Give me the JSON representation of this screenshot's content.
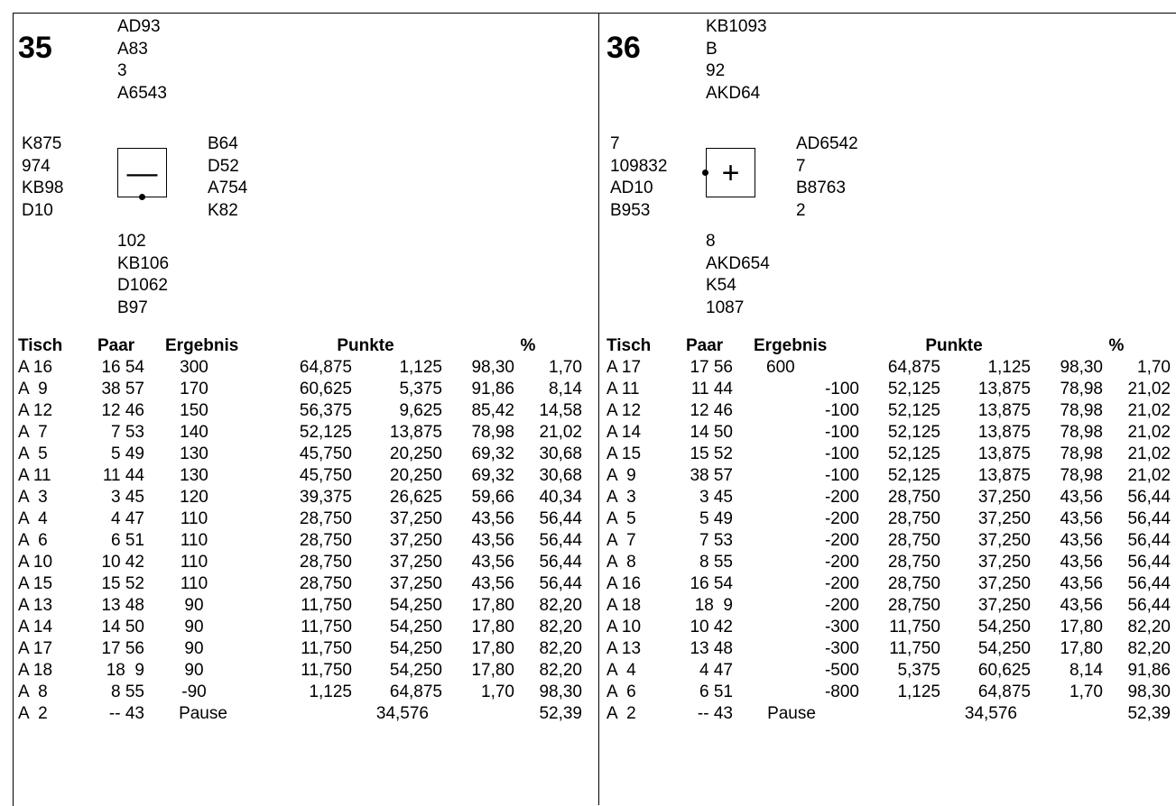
{
  "boards": [
    {
      "number": "35",
      "north": [
        "AD93",
        "A83",
        "3",
        "A6543"
      ],
      "west": [
        "K875",
        "974",
        "KB98",
        "D10"
      ],
      "east": [
        "B64",
        "D52",
        "A754",
        "K82"
      ],
      "south": [
        "102",
        "KB106",
        "D1062",
        "B97"
      ],
      "vulnerability_symbol": "—",
      "vulnerability_label": "none vulnerable",
      "dealer_marker": "south",
      "headers": [
        "Tisch",
        "Paar",
        "Ergebnis",
        "Punkte",
        "%"
      ],
      "rows": [
        {
          "tisch": "A 16",
          "paar": "16 54",
          "ergebnis": "300",
          "punkte_ns": "64,875",
          "punkte_ow": "1,125",
          "pct_ns": "98,30",
          "pct_ow": "1,70"
        },
        {
          "tisch": "A  9",
          "paar": "38 57",
          "ergebnis": "170",
          "punkte_ns": "60,625",
          "punkte_ow": "5,375",
          "pct_ns": "91,86",
          "pct_ow": "8,14"
        },
        {
          "tisch": "A 12",
          "paar": "12 46",
          "ergebnis": "150",
          "punkte_ns": "56,375",
          "punkte_ow": "9,625",
          "pct_ns": "85,42",
          "pct_ow": "14,58"
        },
        {
          "tisch": "A  7",
          "paar": "7 53",
          "ergebnis": "140",
          "punkte_ns": "52,125",
          "punkte_ow": "13,875",
          "pct_ns": "78,98",
          "pct_ow": "21,02"
        },
        {
          "tisch": "A  5",
          "paar": "5 49",
          "ergebnis": "130",
          "punkte_ns": "45,750",
          "punkte_ow": "20,250",
          "pct_ns": "69,32",
          "pct_ow": "30,68"
        },
        {
          "tisch": "A 11",
          "paar": "11 44",
          "ergebnis": "130",
          "punkte_ns": "45,750",
          "punkte_ow": "20,250",
          "pct_ns": "69,32",
          "pct_ow": "30,68"
        },
        {
          "tisch": "A  3",
          "paar": "3 45",
          "ergebnis": "120",
          "punkte_ns": "39,375",
          "punkte_ow": "26,625",
          "pct_ns": "59,66",
          "pct_ow": "40,34"
        },
        {
          "tisch": "A  4",
          "paar": "4 47",
          "ergebnis": "110",
          "punkte_ns": "28,750",
          "punkte_ow": "37,250",
          "pct_ns": "43,56",
          "pct_ow": "56,44"
        },
        {
          "tisch": "A  6",
          "paar": "6 51",
          "ergebnis": "110",
          "punkte_ns": "28,750",
          "punkte_ow": "37,250",
          "pct_ns": "43,56",
          "pct_ow": "56,44"
        },
        {
          "tisch": "A 10",
          "paar": "10 42",
          "ergebnis": "110",
          "punkte_ns": "28,750",
          "punkte_ow": "37,250",
          "pct_ns": "43,56",
          "pct_ow": "56,44"
        },
        {
          "tisch": "A 15",
          "paar": "15 52",
          "ergebnis": "110",
          "punkte_ns": "28,750",
          "punkte_ow": "37,250",
          "pct_ns": "43,56",
          "pct_ow": "56,44"
        },
        {
          "tisch": "A 13",
          "paar": "13 48",
          "ergebnis": "90",
          "punkte_ns": "11,750",
          "punkte_ow": "54,250",
          "pct_ns": "17,80",
          "pct_ow": "82,20"
        },
        {
          "tisch": "A 14",
          "paar": "14 50",
          "ergebnis": "90",
          "punkte_ns": "11,750",
          "punkte_ow": "54,250",
          "pct_ns": "17,80",
          "pct_ow": "82,20"
        },
        {
          "tisch": "A 17",
          "paar": "17 56",
          "ergebnis": "90",
          "punkte_ns": "11,750",
          "punkte_ow": "54,250",
          "pct_ns": "17,80",
          "pct_ow": "82,20"
        },
        {
          "tisch": "A 18",
          "paar": "18  9",
          "ergebnis": "90",
          "punkte_ns": "11,750",
          "punkte_ow": "54,250",
          "pct_ns": "17,80",
          "pct_ow": "82,20"
        },
        {
          "tisch": "A  8",
          "paar": "8 55",
          "ergebnis": "-90",
          "punkte_ns": "1,125",
          "punkte_ow": "64,875",
          "pct_ns": "1,70",
          "pct_ow": "98,30"
        },
        {
          "tisch": "A  2",
          "paar": "-- 43",
          "ergebnis": "Pause",
          "punkte_ns": "",
          "punkte_ow": "34,576",
          "pct_ns": "",
          "pct_ow": "52,39"
        }
      ]
    },
    {
      "number": "36",
      "north": [
        "KB1093",
        "B",
        "92",
        "AKD64"
      ],
      "west": [
        "7",
        "109832",
        "AD10",
        "B953"
      ],
      "east": [
        "AD6542",
        "7",
        "B8763",
        "2"
      ],
      "south": [
        "8",
        "AKD654",
        "K54",
        "1087"
      ],
      "vulnerability_symbol": "+",
      "vulnerability_label": "all vulnerable",
      "dealer_marker": "west",
      "headers": [
        "Tisch",
        "Paar",
        "Ergebnis",
        "Punkte",
        "%"
      ],
      "rows": [
        {
          "tisch": "A 17",
          "paar": "17 56",
          "ergebnis": "600",
          "punkte_ns": "64,875",
          "punkte_ow": "1,125",
          "pct_ns": "98,30",
          "pct_ow": "1,70"
        },
        {
          "tisch": "A 11",
          "paar": "11 44",
          "ergebnis": "-100",
          "punkte_ns": "52,125",
          "punkte_ow": "13,875",
          "pct_ns": "78,98",
          "pct_ow": "21,02"
        },
        {
          "tisch": "A 12",
          "paar": "12 46",
          "ergebnis": "-100",
          "punkte_ns": "52,125",
          "punkte_ow": "13,875",
          "pct_ns": "78,98",
          "pct_ow": "21,02"
        },
        {
          "tisch": "A 14",
          "paar": "14 50",
          "ergebnis": "-100",
          "punkte_ns": "52,125",
          "punkte_ow": "13,875",
          "pct_ns": "78,98",
          "pct_ow": "21,02"
        },
        {
          "tisch": "A 15",
          "paar": "15 52",
          "ergebnis": "-100",
          "punkte_ns": "52,125",
          "punkte_ow": "13,875",
          "pct_ns": "78,98",
          "pct_ow": "21,02"
        },
        {
          "tisch": "A  9",
          "paar": "38 57",
          "ergebnis": "-100",
          "punkte_ns": "52,125",
          "punkte_ow": "13,875",
          "pct_ns": "78,98",
          "pct_ow": "21,02"
        },
        {
          "tisch": "A  3",
          "paar": "3 45",
          "ergebnis": "-200",
          "punkte_ns": "28,750",
          "punkte_ow": "37,250",
          "pct_ns": "43,56",
          "pct_ow": "56,44"
        },
        {
          "tisch": "A  5",
          "paar": "5 49",
          "ergebnis": "-200",
          "punkte_ns": "28,750",
          "punkte_ow": "37,250",
          "pct_ns": "43,56",
          "pct_ow": "56,44"
        },
        {
          "tisch": "A  7",
          "paar": "7 53",
          "ergebnis": "-200",
          "punkte_ns": "28,750",
          "punkte_ow": "37,250",
          "pct_ns": "43,56",
          "pct_ow": "56,44"
        },
        {
          "tisch": "A  8",
          "paar": "8 55",
          "ergebnis": "-200",
          "punkte_ns": "28,750",
          "punkte_ow": "37,250",
          "pct_ns": "43,56",
          "pct_ow": "56,44"
        },
        {
          "tisch": "A 16",
          "paar": "16 54",
          "ergebnis": "-200",
          "punkte_ns": "28,750",
          "punkte_ow": "37,250",
          "pct_ns": "43,56",
          "pct_ow": "56,44"
        },
        {
          "tisch": "A 18",
          "paar": "18  9",
          "ergebnis": "-200",
          "punkte_ns": "28,750",
          "punkte_ow": "37,250",
          "pct_ns": "43,56",
          "pct_ow": "56,44"
        },
        {
          "tisch": "A 10",
          "paar": "10 42",
          "ergebnis": "-300",
          "punkte_ns": "11,750",
          "punkte_ow": "54,250",
          "pct_ns": "17,80",
          "pct_ow": "82,20"
        },
        {
          "tisch": "A 13",
          "paar": "13 48",
          "ergebnis": "-300",
          "punkte_ns": "11,750",
          "punkte_ow": "54,250",
          "pct_ns": "17,80",
          "pct_ow": "82,20"
        },
        {
          "tisch": "A  4",
          "paar": "4 47",
          "ergebnis": "-500",
          "punkte_ns": "5,375",
          "punkte_ow": "60,625",
          "pct_ns": "8,14",
          "pct_ow": "91,86"
        },
        {
          "tisch": "A  6",
          "paar": "6 51",
          "ergebnis": "-800",
          "punkte_ns": "1,125",
          "punkte_ow": "64,875",
          "pct_ns": "1,70",
          "pct_ow": "98,30"
        },
        {
          "tisch": "A  2",
          "paar": "-- 43",
          "ergebnis": "Pause",
          "punkte_ns": "",
          "punkte_ow": "34,576",
          "pct_ns": "",
          "pct_ow": "52,39"
        }
      ]
    }
  ]
}
